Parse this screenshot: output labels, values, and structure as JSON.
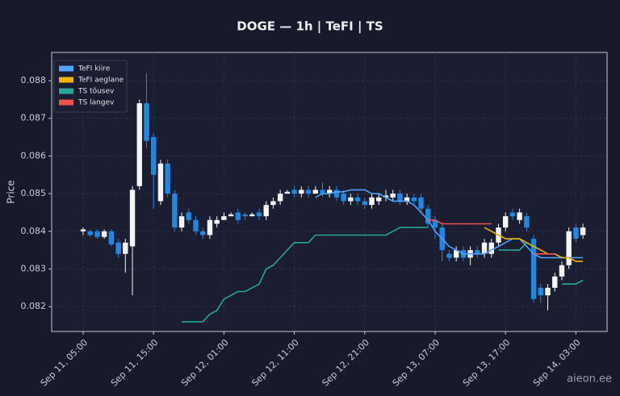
{
  "chart_data": {
    "type": "candlestick",
    "title": "DOGE — 1h  |  TeFI  |  TS",
    "y_label": "Price",
    "watermark": "aieon.ee",
    "categories": [
      "Sep 11, 05:00",
      null,
      null,
      null,
      null,
      null,
      null,
      null,
      null,
      null,
      "Sep 11, 15:00",
      null,
      null,
      null,
      null,
      null,
      null,
      null,
      null,
      null,
      "Sep 12, 01:00",
      null,
      null,
      null,
      null,
      null,
      null,
      null,
      null,
      null,
      "Sep 12, 11:00",
      null,
      null,
      null,
      null,
      null,
      null,
      null,
      null,
      null,
      "Sep 12, 21:00",
      null,
      null,
      null,
      null,
      null,
      null,
      null,
      null,
      null,
      "Sep 13, 07:00",
      null,
      null,
      null,
      null,
      null,
      null,
      null,
      null,
      null,
      "Sep 13, 17:00",
      null,
      null,
      null,
      null,
      null,
      null,
      null,
      null,
      null,
      "Sep 14, 03:00",
      null
    ],
    "open": [
      0.084,
      0.084,
      0.084,
      0.08385,
      0.084,
      0.0837,
      0.0834,
      0.0836,
      0.0852,
      0.0874,
      0.0865,
      0.0848,
      0.0858,
      0.085,
      0.0841,
      0.0845,
      0.0843,
      0.084,
      0.0839,
      0.0842,
      0.0843,
      0.0844,
      0.0845,
      0.08445,
      0.0844,
      0.0845,
      0.0844,
      0.0847,
      0.0848,
      0.085,
      0.0851,
      0.085,
      0.0851,
      0.085,
      0.0851,
      0.085,
      0.0851,
      0.085,
      0.0848,
      0.0849,
      0.0848,
      0.0847,
      0.0848,
      0.0849,
      0.0849,
      0.085,
      0.0848,
      0.0849,
      0.0849,
      0.0846,
      0.0843,
      0.0841,
      0.0834,
      0.0833,
      0.0835,
      0.0833,
      0.0835,
      0.0834,
      0.0834,
      0.0837,
      0.0841,
      0.0845,
      0.0843,
      0.0844,
      0.0838,
      0.0825,
      0.0823,
      0.0825,
      0.0828,
      0.0831,
      0.0841,
      0.0839
    ],
    "high": [
      0.0841,
      0.08405,
      0.08405,
      0.08405,
      0.08405,
      0.0838,
      0.0838,
      0.0852,
      0.0875,
      0.0882,
      0.0866,
      0.0859,
      0.0859,
      0.0851,
      0.0845,
      0.0846,
      0.0844,
      0.0841,
      0.0844,
      0.0844,
      0.0845,
      0.0845,
      0.0846,
      0.0845,
      0.0845,
      0.0846,
      0.0848,
      0.0849,
      0.0851,
      0.0851,
      0.0852,
      0.0852,
      0.0852,
      0.0852,
      0.0853,
      0.0852,
      0.0852,
      0.0851,
      0.085,
      0.085,
      0.0849,
      0.085,
      0.085,
      0.0851,
      0.0851,
      0.0851,
      0.085,
      0.085,
      0.085,
      0.0847,
      0.0844,
      0.0842,
      0.0835,
      0.0836,
      0.0836,
      0.0836,
      0.0836,
      0.0838,
      0.0838,
      0.0842,
      0.0845,
      0.0846,
      0.0846,
      0.0845,
      0.0839,
      0.0826,
      0.0826,
      0.0829,
      0.0832,
      0.0841,
      0.0842,
      0.0842
    ],
    "low": [
      0.0839,
      0.08385,
      0.0838,
      0.0838,
      0.0836,
      0.0833,
      0.0829,
      0.0823,
      0.0851,
      0.0862,
      0.0846,
      0.0847,
      0.0849,
      0.084,
      0.084,
      0.0842,
      0.0839,
      0.0838,
      0.0838,
      0.0841,
      0.0843,
      0.0844,
      0.0842,
      0.0843,
      0.0844,
      0.0843,
      0.0843,
      0.0846,
      0.0847,
      0.085,
      0.0849,
      0.0849,
      0.0849,
      0.085,
      0.0849,
      0.0849,
      0.0848,
      0.0847,
      0.0847,
      0.0847,
      0.0846,
      0.0846,
      0.0847,
      0.0848,
      0.0848,
      0.0847,
      0.0847,
      0.0847,
      0.0845,
      0.0841,
      0.0838,
      0.0832,
      0.0832,
      0.0832,
      0.0832,
      0.0831,
      0.0833,
      0.0833,
      0.0833,
      0.0836,
      0.084,
      0.0843,
      0.0842,
      0.084,
      0.0821,
      0.0821,
      0.0819,
      0.0824,
      0.0827,
      0.083,
      0.0837,
      0.0838
    ],
    "close": [
      0.08405,
      0.0839,
      0.08385,
      0.084,
      0.08365,
      0.0834,
      0.0837,
      0.0851,
      0.0874,
      0.0864,
      0.0855,
      0.0858,
      0.085,
      0.0841,
      0.0844,
      0.0843,
      0.084,
      0.0839,
      0.0843,
      0.0843,
      0.0844,
      0.08445,
      0.0843,
      0.0844,
      0.08445,
      0.0844,
      0.0847,
      0.0848,
      0.085,
      0.08505,
      0.085,
      0.0851,
      0.085,
      0.0851,
      0.085,
      0.0851,
      0.0849,
      0.0848,
      0.0849,
      0.0848,
      0.0847,
      0.0849,
      0.0849,
      0.08495,
      0.085,
      0.0848,
      0.0849,
      0.0848,
      0.0846,
      0.0842,
      0.0841,
      0.0835,
      0.0833,
      0.0835,
      0.0833,
      0.0835,
      0.0834,
      0.0837,
      0.0837,
      0.0841,
      0.0844,
      0.0844,
      0.0845,
      0.0841,
      0.0822,
      0.0823,
      0.0825,
      0.0828,
      0.0831,
      0.084,
      0.0838,
      0.0841
    ],
    "up_color": "#f5f5f5",
    "down_color": "#1e88e5",
    "series": [
      {
        "name": "TeFI kiire",
        "color": "#4da3ff",
        "values": [
          null,
          null,
          null,
          null,
          null,
          null,
          null,
          null,
          null,
          null,
          null,
          null,
          null,
          null,
          null,
          null,
          null,
          null,
          null,
          null,
          null,
          null,
          null,
          null,
          null,
          null,
          null,
          null,
          null,
          null,
          null,
          null,
          null,
          0.0849,
          0.085,
          0.085,
          0.08505,
          0.08505,
          0.0851,
          0.0851,
          0.0851,
          0.085,
          0.085,
          0.0849,
          0.0848,
          0.0848,
          0.0848,
          0.0847,
          0.0845,
          0.0843,
          0.084,
          0.0838,
          0.0836,
          0.0835,
          0.0834,
          0.0834,
          0.0834,
          0.0834,
          0.0835,
          0.0836,
          0.0837,
          0.0838,
          0.0838,
          0.0836,
          0.0834,
          0.0833,
          0.0833,
          0.0833,
          0.0833,
          0.0833,
          0.0833,
          0.0833
        ]
      },
      {
        "name": "TeFI aeglane",
        "color": "#f0b400",
        "values": [
          null,
          null,
          null,
          null,
          null,
          null,
          null,
          null,
          null,
          null,
          null,
          null,
          null,
          null,
          null,
          null,
          null,
          null,
          null,
          null,
          null,
          null,
          null,
          null,
          null,
          null,
          null,
          null,
          null,
          null,
          null,
          null,
          null,
          null,
          null,
          null,
          null,
          null,
          null,
          null,
          null,
          null,
          null,
          null,
          null,
          null,
          null,
          null,
          null,
          null,
          null,
          null,
          null,
          null,
          null,
          null,
          null,
          0.0841,
          0.084,
          0.0839,
          0.0838,
          0.0838,
          0.0838,
          0.0837,
          0.0836,
          0.0835,
          0.0834,
          0.0834,
          0.0833,
          0.0833,
          0.0832,
          0.0832
        ]
      },
      {
        "name": "TS tõusev",
        "color": "#26a69a",
        "values": [
          null,
          null,
          null,
          null,
          null,
          null,
          null,
          null,
          null,
          null,
          null,
          null,
          null,
          null,
          0.0816,
          0.0816,
          0.0816,
          0.0816,
          0.0818,
          0.0819,
          0.0822,
          0.0823,
          0.0824,
          0.0824,
          0.0825,
          0.0826,
          0.083,
          0.0831,
          0.0833,
          0.0835,
          0.0837,
          0.0837,
          0.0837,
          0.0839,
          0.0839,
          0.0839,
          0.0839,
          0.0839,
          0.0839,
          0.0839,
          0.0839,
          0.0839,
          0.0839,
          0.0839,
          0.084,
          0.0841,
          0.0841,
          0.0841,
          0.0841,
          0.0841,
          null,
          null,
          null,
          null,
          null,
          null,
          null,
          null,
          null,
          0.0835,
          0.0835,
          0.0835,
          0.0835,
          0.0837,
          null,
          null,
          null,
          null,
          0.0826,
          0.0826,
          0.0826,
          0.0827
        ]
      },
      {
        "name": "TS langev",
        "color": "#ef5350",
        "values": [
          null,
          null,
          null,
          null,
          null,
          null,
          null,
          null,
          null,
          null,
          null,
          null,
          null,
          null,
          null,
          null,
          null,
          null,
          null,
          null,
          null,
          null,
          null,
          null,
          null,
          null,
          null,
          null,
          null,
          null,
          null,
          null,
          null,
          null,
          null,
          null,
          null,
          null,
          null,
          null,
          null,
          null,
          null,
          null,
          null,
          null,
          null,
          null,
          null,
          0.0843,
          0.0843,
          0.0842,
          0.0842,
          0.0842,
          0.0842,
          0.0842,
          0.0842,
          0.0842,
          0.0842,
          null,
          null,
          null,
          null,
          null,
          0.0834,
          0.0834,
          0.0834,
          0.0834,
          null,
          null,
          null,
          null
        ]
      }
    ],
    "ylim": [
      0.08134,
      0.08875
    ],
    "yticks": [
      0.082,
      0.083,
      0.084,
      0.085,
      0.086,
      0.087,
      0.088
    ],
    "grid": true,
    "legend": "upper left"
  }
}
